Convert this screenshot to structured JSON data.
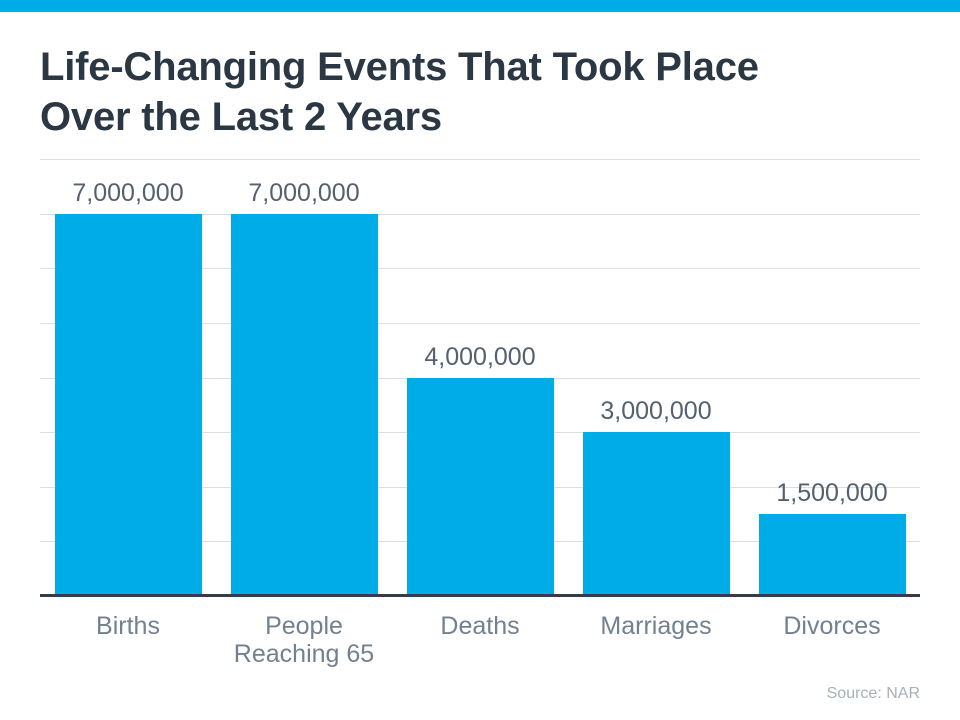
{
  "header": {
    "title_line1": "Life-Changing Events That Took Place",
    "title_line2": "Over the Last 2 Years"
  },
  "footer": {
    "source": "Source: NAR"
  },
  "colors": {
    "background": "#FFFFFF",
    "accent": "#00ACE8",
    "bar": "#00ACE8",
    "title_text": "#2B3844",
    "value_label": "#54616E",
    "category_label": "#73818F",
    "gridline": "#DBDDDF",
    "axis_line": "#333E48",
    "source_text": "#A7B0B8"
  },
  "chart_data": {
    "type": "bar",
    "title": "Life-Changing Events That Took Place Over the Last 2 Years",
    "categories": [
      "Births",
      "People Reaching 65",
      "Deaths",
      "Marriages",
      "Divorces"
    ],
    "values": [
      7000000,
      7000000,
      4000000,
      3000000,
      1500000
    ],
    "value_labels": [
      "7,000,000",
      "7,000,000",
      "4,000,000",
      "3,000,000",
      "1,500,000"
    ],
    "xlabel": "",
    "ylabel": "",
    "ylim": [
      0,
      8000000
    ],
    "gridline_interval": 1000000,
    "grid": true,
    "legend": "none",
    "bar_color": "#00ACE8",
    "annotations": [
      "Source: NAR"
    ]
  }
}
